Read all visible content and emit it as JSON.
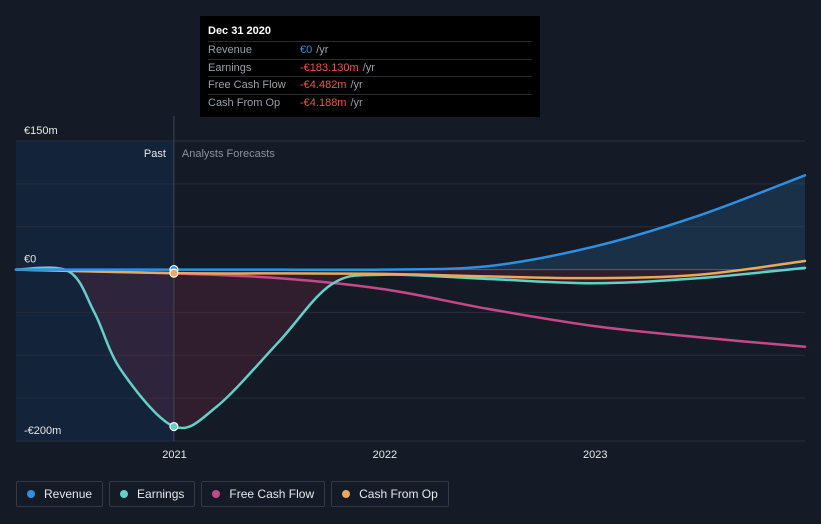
{
  "chart_data": {
    "type": "line",
    "x_domain": [
      "2020-04-01",
      "2023-12-31"
    ],
    "ylim": [
      -200,
      150
    ],
    "y_tick_labels": [
      {
        "value": 150,
        "label": "€150m"
      },
      {
        "value": 0,
        "label": "€0"
      },
      {
        "value": -200,
        "label": "-€200m"
      }
    ],
    "x_tick_labels": [
      {
        "date": "2021-01-01",
        "label": "2021"
      },
      {
        "date": "2022-01-01",
        "label": "2022"
      },
      {
        "date": "2023-01-01",
        "label": "2023"
      }
    ],
    "divider_date": "2020-12-31",
    "past_label": "Past",
    "forecast_label": "Analysts Forecasts",
    "series": [
      {
        "name": "Revenue",
        "color": "#2f8fe0",
        "fill": true,
        "points": [
          [
            "2020-04-01",
            0
          ],
          [
            "2020-12-31",
            0
          ],
          [
            "2021-06-30",
            0
          ],
          [
            "2021-12-31",
            0
          ],
          [
            "2022-06-30",
            4
          ],
          [
            "2022-12-31",
            27
          ],
          [
            "2023-06-30",
            63
          ],
          [
            "2023-12-31",
            110
          ]
        ]
      },
      {
        "name": "Earnings",
        "color": "#5ed3c8",
        "fill": true,
        "points": [
          [
            "2020-04-01",
            0
          ],
          [
            "2020-07-01",
            -2
          ],
          [
            "2020-08-15",
            -50
          ],
          [
            "2020-10-01",
            -118
          ],
          [
            "2020-12-31",
            -183
          ],
          [
            "2021-03-15",
            -160
          ],
          [
            "2021-06-30",
            -85
          ],
          [
            "2021-10-01",
            -17
          ],
          [
            "2021-12-31",
            -6
          ],
          [
            "2022-06-30",
            -11
          ],
          [
            "2022-12-31",
            -16
          ],
          [
            "2023-06-30",
            -10
          ],
          [
            "2023-12-31",
            2
          ]
        ]
      },
      {
        "name": "Free Cash Flow",
        "color": "#c4488a",
        "fill": false,
        "points": [
          [
            "2020-04-01",
            0
          ],
          [
            "2020-12-31",
            -4.5
          ],
          [
            "2021-06-30",
            -10
          ],
          [
            "2021-12-31",
            -23
          ],
          [
            "2022-06-30",
            -46
          ],
          [
            "2022-12-31",
            -66
          ],
          [
            "2023-06-30",
            -79
          ],
          [
            "2023-12-31",
            -90
          ]
        ]
      },
      {
        "name": "Cash From Op",
        "color": "#e8a95c",
        "fill": false,
        "points": [
          [
            "2020-04-01",
            0
          ],
          [
            "2020-12-31",
            -4.2
          ],
          [
            "2021-06-30",
            -4.5
          ],
          [
            "2021-12-31",
            -5
          ],
          [
            "2022-06-30",
            -8
          ],
          [
            "2022-12-31",
            -10
          ],
          [
            "2023-06-30",
            -6
          ],
          [
            "2023-12-31",
            10
          ]
        ]
      }
    ],
    "markers": [
      {
        "series": "Revenue",
        "date": "2020-12-31",
        "value": 0
      },
      {
        "series": "Earnings",
        "date": "2020-12-31",
        "value": -183.13
      },
      {
        "series": "Cash From Op",
        "date": "2020-12-31",
        "value": -4.188
      }
    ]
  },
  "tooltip": {
    "date": "Dec 31 2020",
    "rows": [
      {
        "label": "Revenue",
        "value": "€0",
        "unit": "/yr",
        "color": "#2f8fe0"
      },
      {
        "label": "Earnings",
        "value": "-€183.130m",
        "unit": "/yr",
        "color": "#ff4d4d"
      },
      {
        "label": "Free Cash Flow",
        "value": "-€4.482m",
        "unit": "/yr",
        "color": "#ff4d4d"
      },
      {
        "label": "Cash From Op",
        "value": "-€4.188m",
        "unit": "/yr",
        "color": "#ff4d4d"
      }
    ]
  },
  "legend": [
    {
      "label": "Revenue",
      "color": "#2f8fe0"
    },
    {
      "label": "Earnings",
      "color": "#5ed3c8"
    },
    {
      "label": "Free Cash Flow",
      "color": "#c4488a"
    },
    {
      "label": "Cash From Op",
      "color": "#e8a95c"
    }
  ]
}
